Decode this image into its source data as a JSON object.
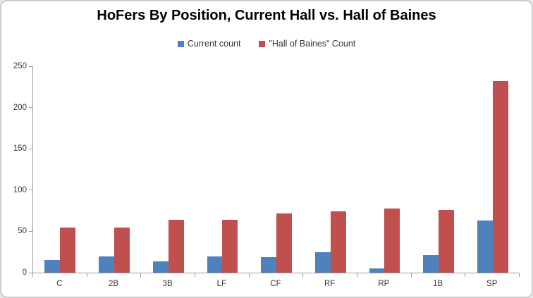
{
  "chart_data": {
    "type": "bar",
    "title": "HoFers By Position, Current Hall vs. Hall of Baines",
    "categories": [
      "C",
      "2B",
      "3B",
      "LF",
      "CF",
      "RF",
      "RP",
      "1B",
      "SP"
    ],
    "series": [
      {
        "name": "Current count",
        "color": "#4f81bd",
        "values": [
          15,
          20,
          14,
          20,
          19,
          25,
          5,
          21,
          63
        ]
      },
      {
        "name": "\"Hall of Baines\" Count",
        "color": "#c0504d",
        "values": [
          55,
          55,
          64,
          64,
          72,
          74,
          78,
          76,
          232
        ]
      }
    ],
    "xlabel": "",
    "ylabel": "",
    "ylim": [
      0,
      250
    ],
    "ytick_step": 50,
    "grid": false,
    "legend_position": "top-center"
  },
  "styles": {
    "background": "#ffffff",
    "frame_border_color": "#cdcdcd",
    "axis_line_color": "#9c9c9c",
    "axis_label_color": "#3a3a3a",
    "title_color": "#000000"
  }
}
